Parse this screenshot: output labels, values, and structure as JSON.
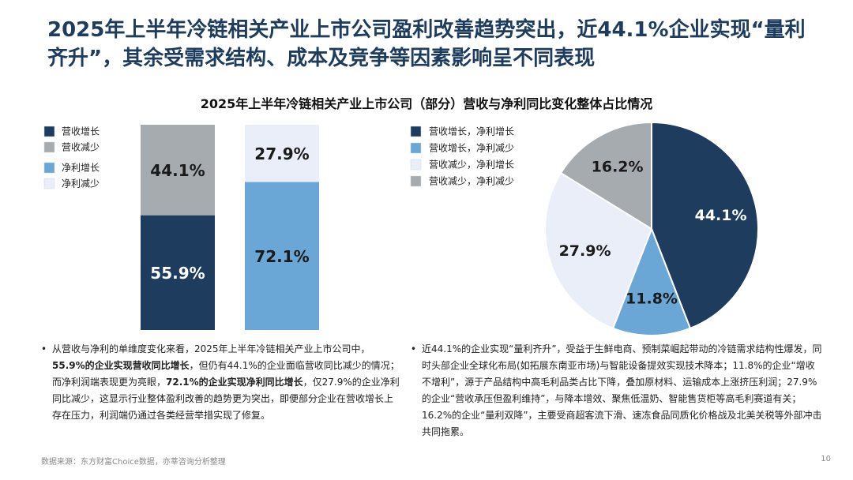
{
  "title": "2025年上半年冷链相关产业上市公司盈利改善趋势突出，近44.1%企业实现“量利齐升”，其余受需求结构、成本及竞争等因素影响呈不同表现",
  "section_title": "2025年上半年冷链相关产业上市公司（部分）营收与净利同比变化整体占比情况",
  "chart_data": [
    {
      "type": "bar",
      "stacked": true,
      "categories": [
        null,
        null
      ],
      "series": [
        {
          "name": "营收增长",
          "color": "#1d3c5e",
          "values": [
            55.9,
            null
          ],
          "value_labels": [
            "55.9%",
            null
          ]
        },
        {
          "name": "营收减少",
          "color": "#a6abb0",
          "values": [
            44.1,
            null
          ],
          "value_labels": [
            "44.1%",
            null
          ]
        },
        {
          "name": "净利增长",
          "color": "#6aa7d6",
          "values": [
            null,
            72.1
          ],
          "value_labels": [
            null,
            "72.1%"
          ]
        },
        {
          "name": "净利减少",
          "color": "#e9eef8",
          "values": [
            null,
            27.9
          ],
          "value_labels": [
            null,
            "27.9%"
          ]
        }
      ]
    },
    {
      "type": "pie",
      "categories": [
        "营收增长，净利增长",
        "营收增长，净利减少",
        "营收减少，净利增长",
        "营收减少，净利减少"
      ],
      "values": [
        44.1,
        11.8,
        27.9,
        16.2
      ],
      "value_labels": [
        "44.1%",
        "11.8%",
        "27.9%",
        "16.2%"
      ],
      "colors": [
        "#1d3c5e",
        "#6aa7d6",
        "#e9eef8",
        "#a6abb0"
      ]
    }
  ],
  "bullets": [
    [
      {
        "text": "从营收与净利的单维度变化来看，2025年上半年冷链相关产业上市公司中，",
        "bold": false
      },
      {
        "text": "55.9%的企业实现营收同比增长",
        "bold": true
      },
      {
        "text": "，但仍有44.1%的企业面临营收同比减少的情况；而净利润端表现更为亮眼，",
        "bold": false
      },
      {
        "text": "72.1%的企业实现净利同比增长",
        "bold": true
      },
      {
        "text": "，仅27.9%的企业净利同比减少，这显示行业整体盈利改善的趋势更为突出，即便部分企业在营收增长上存在压力，利润端仍通过各类经营举措实现了修复。",
        "bold": false
      }
    ],
    [
      {
        "text": "近44.1%的企业实现“量利齐升”，受益于生鲜电商、预制菜崛起带动的冷链需求结构性爆发，同时头部企业全球化布局(如拓展东南亚市场)与智能设备提效实现技术降本；11.8%的企业“增收不增利”，源于产品结构中高毛利品类占比下降，叠加原材料、运输成本上涨挤压利润；27.9%的企业“营收承压但盈利维持”，与降本增效、聚焦低温奶、智能售货柜等高毛利赛道有关；16.2%的企业“量利双降”，主要受商超客流下滑、速冻食品同质化价格战及北美关税等外部冲击共同拖累。",
        "bold": false
      }
    ]
  ],
  "source": "数据来源：东方财富Choice数据，亦莘咨询分析整理",
  "page_number": "10"
}
